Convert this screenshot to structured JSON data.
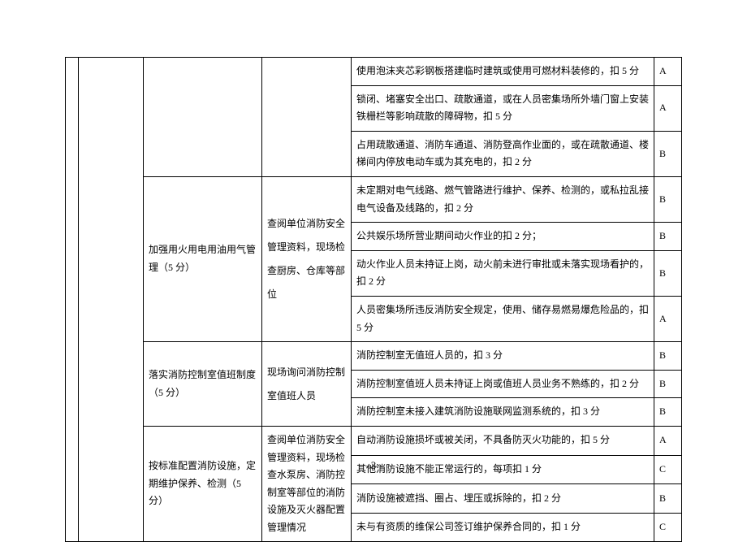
{
  "rows": [
    {
      "c4": "使用泡沫夹芯彩钢板搭建临时建筑或使用可燃材料装修的，扣 5 分",
      "c5": "A"
    },
    {
      "c4": "锁闭、堵塞安全出口、疏散通道，或在人员密集场所外墙门窗上安装铁栅栏等影响疏散的障碍物，扣 5 分",
      "c5": "A"
    },
    {
      "c4": "占用疏散通道、消防车通道、消防登高作业面的，或在疏散通道、楼梯间内停放电动车或为其充电的，扣 2 分",
      "c5": "B"
    },
    {
      "c4": "未定期对电气线路、燃气管路进行维护、保养、检测的，或私拉乱接电气设备及线路的，扣 2 分",
      "c5": "B"
    },
    {
      "c4": "公共娱乐场所营业期间动火作业的扣 2 分；",
      "c5": "B"
    },
    {
      "c4": "动火作业人员未持证上岗，动火前未进行审批或未落实现场看护的，扣 2 分",
      "c5": "B"
    },
    {
      "c4": "人员密集场所违反消防安全规定，使用、储存易燃易爆危险品的，扣 5 分",
      "c5": "A"
    },
    {
      "c4": "消防控制室无值班人员的，扣 3 分",
      "c5": "B"
    },
    {
      "c4": "消防控制室值班人员未持证上岗或值班人员业务不熟练的，扣 2 分",
      "c5": "B"
    },
    {
      "c4": "消防控制室未接入建筑消防设施联网监测系统的，扣 3 分",
      "c5": "B"
    },
    {
      "c4": "自动消防设施损坏或被关闭，不具备防灭火功能的，扣 5 分",
      "c5": "A"
    },
    {
      "c4": "其他消防设施不能正常运行的，每项扣 1 分",
      "c5": "C"
    },
    {
      "c4": "消防设施被遮挡、圈占、埋压或拆除的，扣 2 分",
      "c5": "B"
    },
    {
      "c4": "未与有资质的维保公司签订维护保养合同的，扣 1 分",
      "c5": "C"
    }
  ],
  "g1": {
    "c2": "加强用火用电用油用气管理（5 分）",
    "c3": "查阅单位消防安全管理资料，现场检查厨房、仓库等部位"
  },
  "g2": {
    "c2": "落实消防控制室值班制度（5 分）",
    "c3": "现场询问消防控制室值班人员"
  },
  "g3": {
    "c2": "按标准配置消防设施，定期维护保养、检测（5 分）",
    "c3": "查阅单位消防安全管理资料，现场检查水泵房、消防控制室等部位的消防设施及灭火器配置管理情况"
  },
  "page": "–3–"
}
